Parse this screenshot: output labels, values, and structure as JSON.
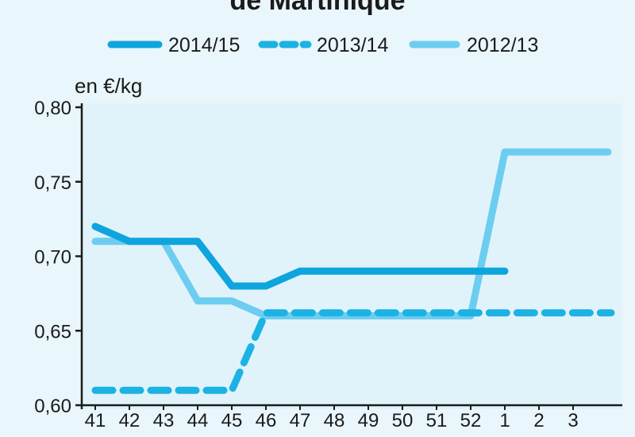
{
  "title": "de Martinique",
  "chart_data": {
    "type": "line",
    "title": "de Martinique",
    "ylabel": "en €/kg",
    "xlabel": "",
    "ylim": [
      0.6,
      0.8
    ],
    "yticks": [
      "0,80",
      "0,75",
      "0,70",
      "0,65",
      "0,60"
    ],
    "ytick_values": [
      0.8,
      0.75,
      0.7,
      0.65,
      0.6
    ],
    "categories": [
      "41",
      "42",
      "43",
      "44",
      "45",
      "46",
      "47",
      "48",
      "49",
      "50",
      "51",
      "52",
      "1",
      "2",
      "3"
    ],
    "grid": false,
    "legend_position": "top",
    "series": [
      {
        "name": "2014/15",
        "style": "solid",
        "color": "#0ea5de",
        "values": [
          0.72,
          0.71,
          0.71,
          0.71,
          0.68,
          0.68,
          0.69,
          0.69,
          0.69,
          0.69,
          0.69,
          0.69,
          0.69,
          null,
          null
        ]
      },
      {
        "name": "2013/14",
        "style": "dashed",
        "color": "#1cb2e4",
        "values": [
          0.61,
          0.61,
          0.61,
          0.61,
          0.61,
          0.662,
          0.662,
          0.662,
          0.662,
          0.662,
          0.662,
          0.662,
          0.662,
          0.662,
          0.662
        ]
      },
      {
        "name": "2012/13",
        "style": "solid",
        "color": "#6dcdf0",
        "values": [
          0.71,
          0.71,
          0.71,
          0.67,
          0.67,
          0.66,
          0.66,
          0.66,
          0.66,
          0.66,
          0.66,
          0.66,
          0.77,
          0.77,
          0.77
        ]
      }
    ]
  }
}
